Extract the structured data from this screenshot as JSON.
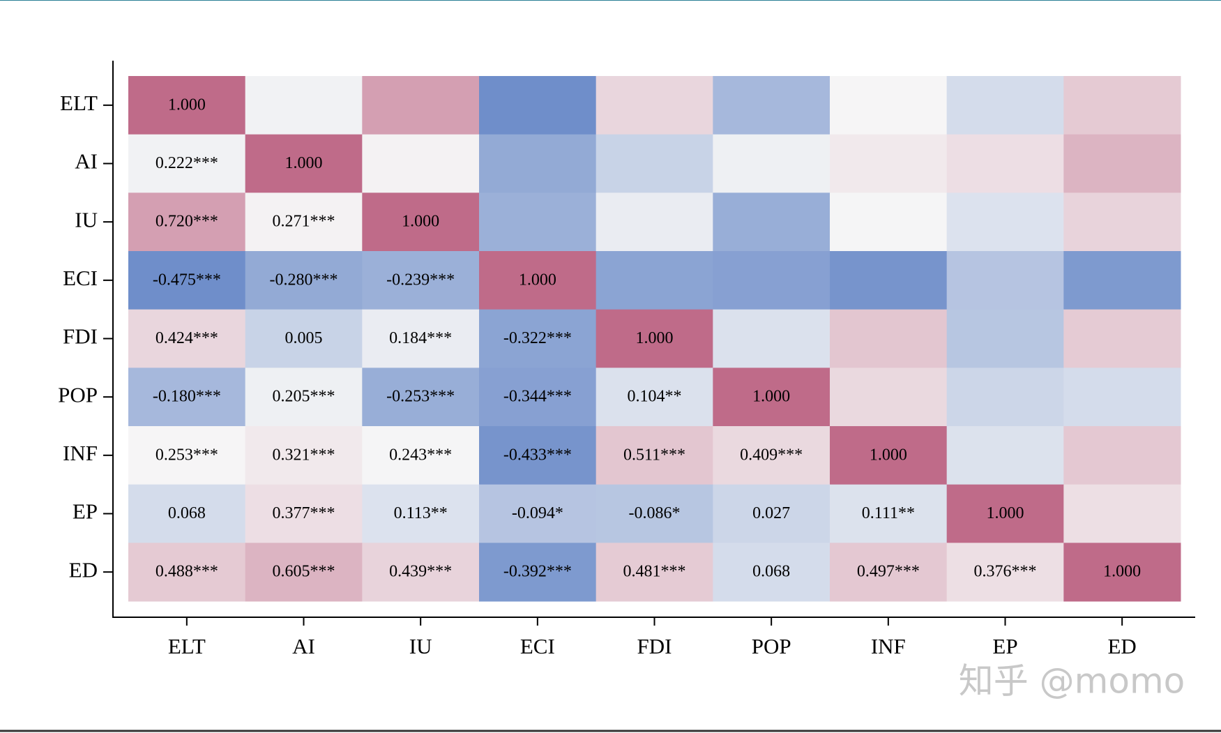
{
  "chart_data": {
    "type": "heatmap",
    "categories": [
      "ELT",
      "AI",
      "IU",
      "ECI",
      "FDI",
      "POP",
      "INF",
      "EP",
      "ED"
    ],
    "values": [
      [
        1
      ],
      [
        0.222,
        1
      ],
      [
        0.72,
        0.271,
        1
      ],
      [
        -0.475,
        -0.28,
        -0.239,
        1
      ],
      [
        0.424,
        0.005,
        0.184,
        -0.322,
        1
      ],
      [
        -0.18,
        0.205,
        -0.253,
        -0.344,
        0.104,
        1
      ],
      [
        0.253,
        0.321,
        0.243,
        -0.433,
        0.511,
        0.409,
        1
      ],
      [
        0.068,
        0.377,
        0.113,
        -0.094,
        -0.086,
        0.027,
        0.111,
        1
      ],
      [
        0.488,
        0.605,
        0.439,
        -0.392,
        0.481,
        0.068,
        0.497,
        0.376,
        1
      ]
    ],
    "value_labels": [
      [
        "1.000"
      ],
      [
        "0.222***",
        "1.000"
      ],
      [
        "0.720***",
        "0.271***",
        "1.000"
      ],
      [
        "-0.475***",
        "-0.280***",
        "-0.239***",
        "1.000"
      ],
      [
        "0.424***",
        "0.005",
        "0.184***",
        "-0.322***",
        "1.000"
      ],
      [
        "-0.180***",
        "0.205***",
        "-0.253***",
        "-0.344***",
        "0.104**",
        "1.000"
      ],
      [
        "0.253***",
        "0.321***",
        "0.243***",
        "-0.433***",
        "0.511***",
        "0.409***",
        "1.000"
      ],
      [
        "0.068",
        "0.377***",
        "0.113**",
        "-0.094*",
        "-0.086*",
        "0.027",
        "0.111**",
        "1.000"
      ],
      [
        "0.488***",
        "0.605***",
        "0.439***",
        "-0.392***",
        "0.481***",
        "0.068",
        "0.497***",
        "0.376***",
        "1.000"
      ]
    ],
    "colorscale": [
      [
        -0.5,
        "#6a8ac8"
      ],
      [
        0.25,
        "#f6f6f6"
      ],
      [
        1,
        "#bf6b89"
      ]
    ],
    "watermark": "知乎 @momo"
  }
}
